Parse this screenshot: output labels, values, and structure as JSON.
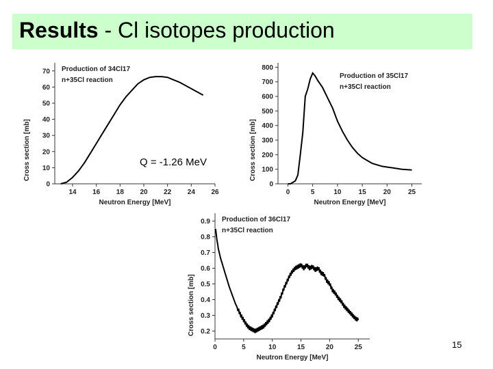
{
  "slide": {
    "title_bold": "Results",
    "title_rest": " - Cl isotopes production",
    "q_value": "Q = -1.26 MeV",
    "page_number": "15",
    "title_bg": "#ccffcc"
  },
  "chart_data": [
    {
      "type": "line",
      "legend_line1": "Production of 34Cl17",
      "legend_line2": "n+35Cl reaction",
      "xlabel": "Neutron Energy [MeV]",
      "ylabel": "Cross section [mb]",
      "xlim": [
        12.5,
        26
      ],
      "ylim": [
        0,
        75
      ],
      "xticks": [
        14,
        16,
        18,
        20,
        22,
        24,
        26
      ],
      "yticks": [
        0,
        10,
        20,
        30,
        40,
        50,
        60,
        70
      ],
      "series": [
        {
          "x": [
            13.0,
            13.5,
            14.0,
            14.5,
            15.0,
            15.5,
            16.0,
            16.5,
            17.0,
            17.5,
            18.0,
            18.5,
            19.0,
            19.5,
            20.0,
            20.5,
            21.0,
            21.5,
            22.0,
            22.5,
            23.0,
            23.5,
            24.0,
            24.5,
            25.0
          ],
          "y": [
            0,
            1,
            4,
            8,
            13,
            19,
            25,
            31,
            37,
            43,
            49,
            54,
            58,
            62,
            64.5,
            66,
            66.5,
            66.5,
            66,
            64.5,
            63,
            61,
            59,
            57,
            55
          ]
        }
      ]
    },
    {
      "type": "line",
      "legend_line1": "Production of 35Cl17",
      "legend_line2": "n+35Cl reaction",
      "xlabel": "Neutron Energy [MeV]",
      "ylabel": "Cross section [mb]",
      "xlim": [
        -2,
        27
      ],
      "ylim": [
        0,
        830
      ],
      "xticks": [
        0,
        5,
        10,
        15,
        20,
        25
      ],
      "yticks": [
        0,
        100,
        200,
        300,
        400,
        500,
        600,
        700,
        800
      ],
      "series": [
        {
          "x": [
            0,
            0.5,
            1,
            1.5,
            2,
            2.5,
            3,
            3.5,
            4,
            4.5,
            5,
            5.5,
            6,
            7,
            8,
            9,
            10,
            11,
            12,
            13,
            14,
            15,
            16,
            17,
            18,
            19,
            20,
            21,
            22,
            23,
            24,
            25
          ],
          "y": [
            0,
            0,
            10,
            20,
            60,
            200,
            350,
            600,
            650,
            720,
            760,
            740,
            710,
            660,
            590,
            520,
            430,
            360,
            300,
            250,
            210,
            180,
            160,
            140,
            130,
            120,
            115,
            110,
            105,
            100,
            97,
            95
          ]
        }
      ]
    },
    {
      "type": "line",
      "legend_line1": "Production of 36Cl17",
      "legend_line2": "n+35Cl reaction",
      "xlabel": "Neutron Energy [MeV]",
      "ylabel": "Cross section [mb]",
      "xlim": [
        0,
        27
      ],
      "ylim": [
        0.15,
        0.95
      ],
      "xticks": [
        0,
        5,
        10,
        15,
        20,
        25
      ],
      "yticks": [
        0.2,
        0.3,
        0.4,
        0.5,
        0.6,
        0.7,
        0.8,
        0.9
      ],
      "series": [
        {
          "x": [
            0.1,
            0.3,
            0.6,
            1,
            1.5,
            2,
            2.5,
            3,
            3.5,
            4,
            4.5,
            5,
            5.5,
            6,
            6.5,
            7,
            7.5,
            8,
            8.5,
            9,
            9.5,
            10,
            10.5,
            11,
            11.5,
            12,
            12.5,
            13,
            13.5,
            14,
            14.5,
            15,
            15.5,
            16,
            16.5,
            17,
            17.5,
            18,
            18.5,
            19,
            19.5,
            20,
            20.5,
            21,
            21.5,
            22,
            22.5,
            23,
            23.5,
            24,
            24.5,
            25
          ],
          "y": [
            0.85,
            0.79,
            0.72,
            0.66,
            0.6,
            0.54,
            0.48,
            0.43,
            0.38,
            0.34,
            0.3,
            0.27,
            0.24,
            0.22,
            0.21,
            0.2,
            0.21,
            0.22,
            0.23,
            0.25,
            0.27,
            0.3,
            0.34,
            0.38,
            0.42,
            0.47,
            0.51,
            0.55,
            0.58,
            0.6,
            0.61,
            0.62,
            0.6,
            0.62,
            0.6,
            0.61,
            0.59,
            0.6,
            0.57,
            0.56,
            0.52,
            0.5,
            0.46,
            0.44,
            0.41,
            0.39,
            0.36,
            0.34,
            0.32,
            0.3,
            0.28,
            0.27
          ]
        }
      ]
    }
  ]
}
